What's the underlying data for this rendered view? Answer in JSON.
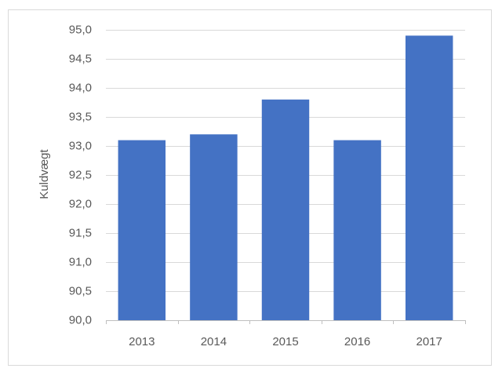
{
  "chart_data": {
    "type": "bar",
    "y_label": "Kuldvægt",
    "categories": [
      "2013",
      "2014",
      "2015",
      "2016",
      "2017"
    ],
    "values": [
      93.1,
      93.2,
      93.8,
      93.1,
      94.9
    ],
    "color": "#4472c4",
    "ylim": [
      90,
      95
    ],
    "yticks": [
      {
        "value": 90,
        "label": "90,0"
      },
      {
        "value": 90.5,
        "label": "90,5"
      },
      {
        "value": 91,
        "label": "91,0"
      },
      {
        "value": 91.5,
        "label": "91,5"
      },
      {
        "value": 92,
        "label": "92,0"
      },
      {
        "value": 92.5,
        "label": "92,5"
      },
      {
        "value": 93,
        "label": "93,0"
      },
      {
        "value": 93.5,
        "label": "93,5"
      },
      {
        "value": 94,
        "label": "94,0"
      },
      {
        "value": 94.5,
        "label": "94,5"
      },
      {
        "value": 95,
        "label": "95,0"
      }
    ],
    "grid": true
  }
}
